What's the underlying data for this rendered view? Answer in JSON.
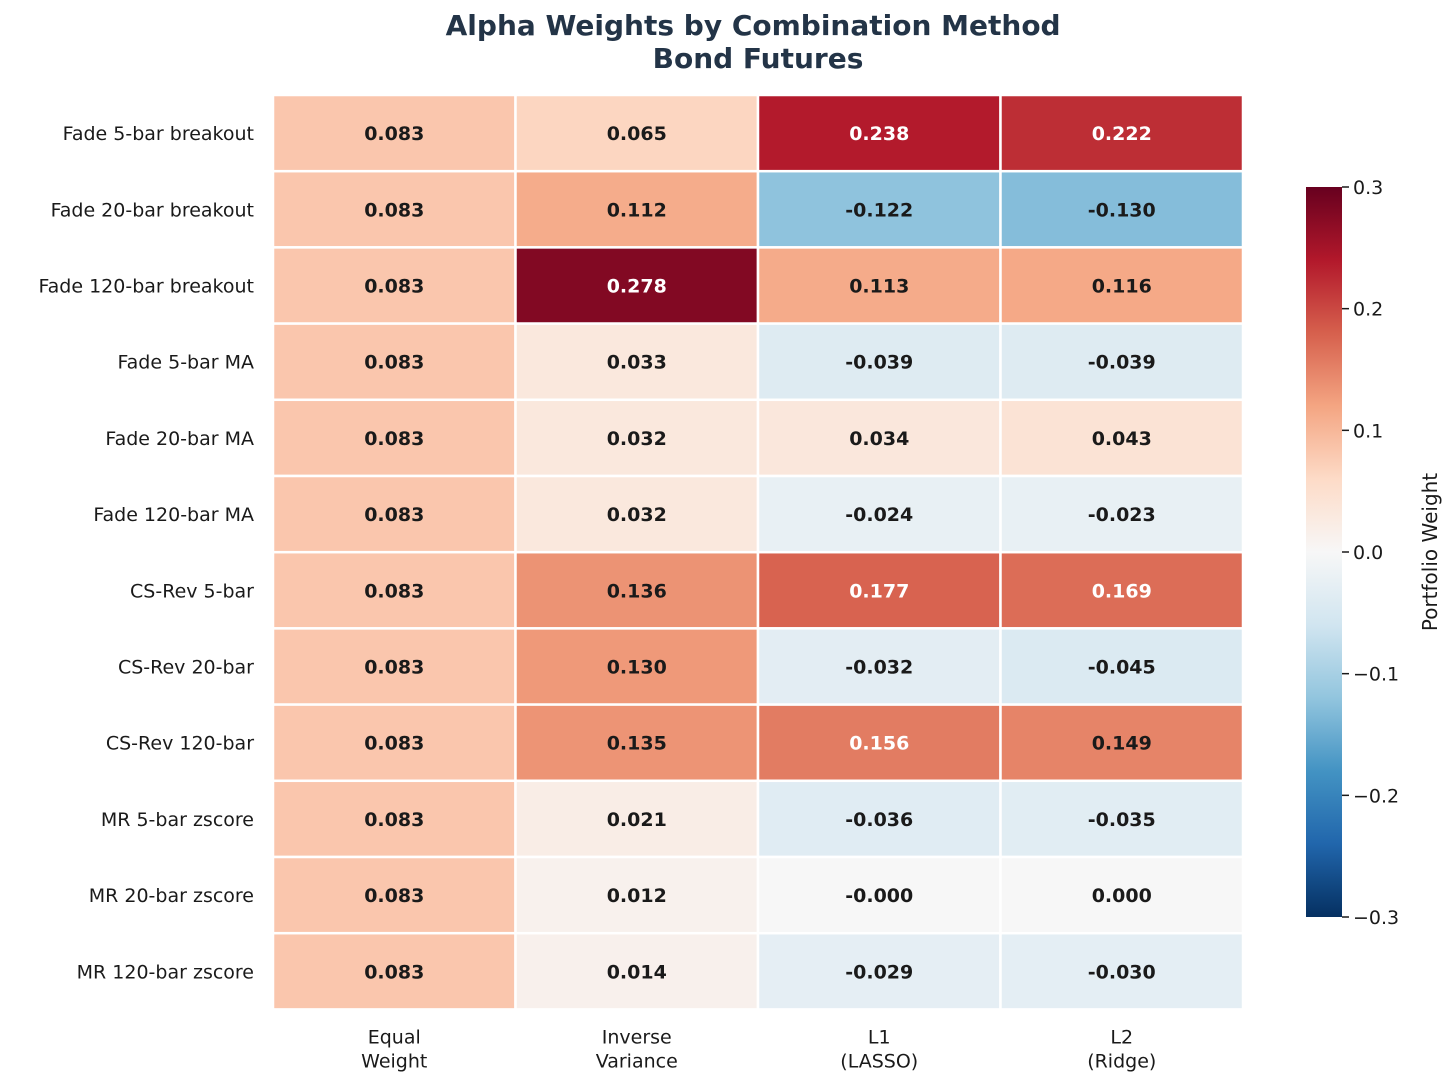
{
  "chart_data": {
    "type": "heatmap",
    "title": [
      "Alpha Weights by Combination Method",
      "Bond Futures"
    ],
    "rows": [
      "Fade 5-bar breakout",
      "Fade 20-bar breakout",
      "Fade 120-bar breakout",
      "Fade 5-bar MA",
      "Fade 20-bar MA",
      "Fade 120-bar MA",
      "CS-Rev 5-bar",
      "CS-Rev 20-bar",
      "CS-Rev 120-bar",
      "MR 5-bar zscore",
      "MR 20-bar zscore",
      "MR 120-bar zscore"
    ],
    "columns": [
      [
        "Equal",
        "Weight"
      ],
      [
        "Inverse",
        "Variance"
      ],
      [
        "L1",
        "(LASSO)"
      ],
      [
        "L2",
        "(Ridge)"
      ]
    ],
    "values": [
      [
        0.083,
        0.065,
        0.238,
        0.222
      ],
      [
        0.083,
        0.112,
        -0.122,
        -0.13
      ],
      [
        0.083,
        0.278,
        0.113,
        0.116
      ],
      [
        0.083,
        0.033,
        -0.039,
        -0.039
      ],
      [
        0.083,
        0.032,
        0.034,
        0.043
      ],
      [
        0.083,
        0.032,
        -0.024,
        -0.023
      ],
      [
        0.083,
        0.136,
        0.177,
        0.169
      ],
      [
        0.083,
        0.13,
        -0.032,
        -0.045
      ],
      [
        0.083,
        0.135,
        0.156,
        0.149
      ],
      [
        0.083,
        0.021,
        -0.036,
        -0.035
      ],
      [
        0.083,
        0.012,
        -0.0,
        0.0
      ],
      [
        0.083,
        0.014,
        -0.029,
        -0.03
      ]
    ],
    "value_labels": [
      [
        "0.083",
        "0.065",
        "0.238",
        "0.222"
      ],
      [
        "0.083",
        "0.112",
        "-0.122",
        "-0.130"
      ],
      [
        "0.083",
        "0.278",
        "0.113",
        "0.116"
      ],
      [
        "0.083",
        "0.033",
        "-0.039",
        "-0.039"
      ],
      [
        "0.083",
        "0.032",
        "0.034",
        "0.043"
      ],
      [
        "0.083",
        "0.032",
        "-0.024",
        "-0.023"
      ],
      [
        "0.083",
        "0.136",
        "0.177",
        "0.169"
      ],
      [
        "0.083",
        "0.130",
        "-0.032",
        "-0.045"
      ],
      [
        "0.083",
        "0.135",
        "0.156",
        "0.149"
      ],
      [
        "0.083",
        "0.021",
        "-0.036",
        "-0.035"
      ],
      [
        "0.083",
        "0.012",
        "-0.000",
        "0.000"
      ],
      [
        "0.083",
        "0.014",
        "-0.029",
        "-0.030"
      ]
    ],
    "colormap": "RdBu_r",
    "vmin": -0.3,
    "vmax": 0.3,
    "colorbar": {
      "label": "Portfolio Weight",
      "ticks": [
        0.3,
        0.2,
        0.1,
        0.0,
        -0.1,
        -0.2,
        -0.3
      ],
      "tick_labels": [
        "0.3",
        "0.2",
        "0.1",
        "0.0",
        "−0.1",
        "−0.2",
        "−0.3"
      ]
    },
    "colors": {
      "title": "#233447",
      "grid_line": "#ffffff",
      "text_dark": "#1a1a1a",
      "text_light": "#ffffff"
    }
  }
}
